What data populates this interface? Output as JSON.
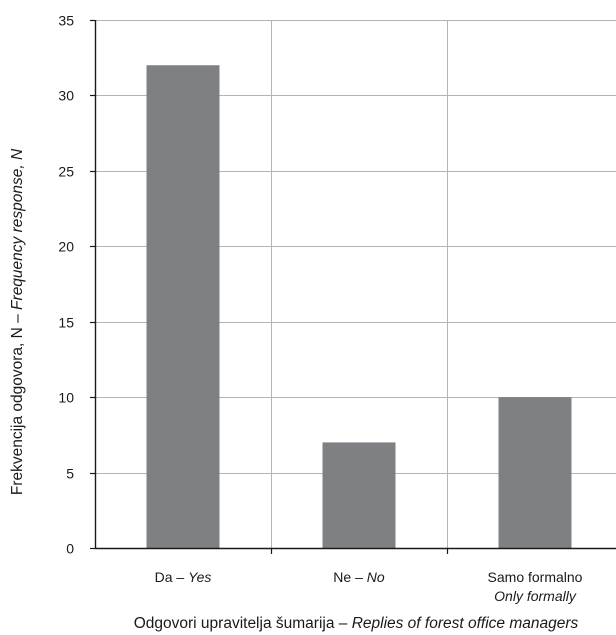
{
  "chart_data": {
    "type": "bar",
    "categories": [
      {
        "main": "Da",
        "sep": " – ",
        "alt": "Yes",
        "alt2": ""
      },
      {
        "main": "Ne",
        "sep": " – ",
        "alt": "No",
        "alt2": ""
      },
      {
        "main": "Samo formalno",
        "sep": "",
        "alt": "",
        "alt2": "Only formally"
      }
    ],
    "values": [
      32,
      7,
      10
    ],
    "ylim": [
      0,
      35
    ],
    "yticks": [
      0,
      5,
      10,
      15,
      20,
      25,
      30,
      35
    ],
    "grid": true,
    "ylabel": {
      "main": "Frekvencija odgovora, N",
      "sep": " – ",
      "alt": "Frequency response, N"
    },
    "xlabel": {
      "main": "Odgovori upravitelja šumarija",
      "sep": " – ",
      "alt": "Replies of forest office managers"
    }
  },
  "colors": {
    "bar": "#7f8083",
    "grid": "#b4b4b4",
    "axis": "#1a1a1a"
  }
}
